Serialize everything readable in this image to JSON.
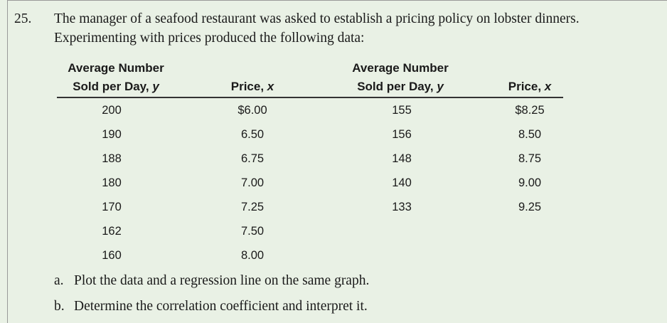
{
  "problem": {
    "number": "25.",
    "lines": [
      "The manager of a seafood restaurant was asked to establish a pricing policy on lobster dinners.",
      "Experimenting with prices produced the following data:"
    ]
  },
  "table": {
    "headers": [
      {
        "line1": "Average Number",
        "line2": "Sold per Day, ",
        "var": "y"
      },
      {
        "line2": "Price, ",
        "var": "x"
      },
      {
        "line1": "Average Number",
        "line2": "Sold per Day, ",
        "var": "y"
      },
      {
        "line2": "Price, ",
        "var": "x"
      }
    ],
    "left_rows": [
      [
        "200",
        "$6.00"
      ],
      [
        "190",
        "6.50"
      ],
      [
        "188",
        "6.75"
      ],
      [
        "180",
        "7.00"
      ],
      [
        "170",
        "7.25"
      ],
      [
        "162",
        "7.50"
      ],
      [
        "160",
        "8.00"
      ]
    ],
    "right_rows": [
      [
        "155",
        "$8.25"
      ],
      [
        "156",
        "8.50"
      ],
      [
        "148",
        "8.75"
      ],
      [
        "140",
        "9.00"
      ],
      [
        "133",
        "9.25"
      ]
    ]
  },
  "parts": [
    {
      "label": "a.",
      "text": "Plot the data and a regression line on the same graph."
    },
    {
      "label": "b.",
      "text": "Determine the correlation coefficient and interpret it."
    }
  ]
}
